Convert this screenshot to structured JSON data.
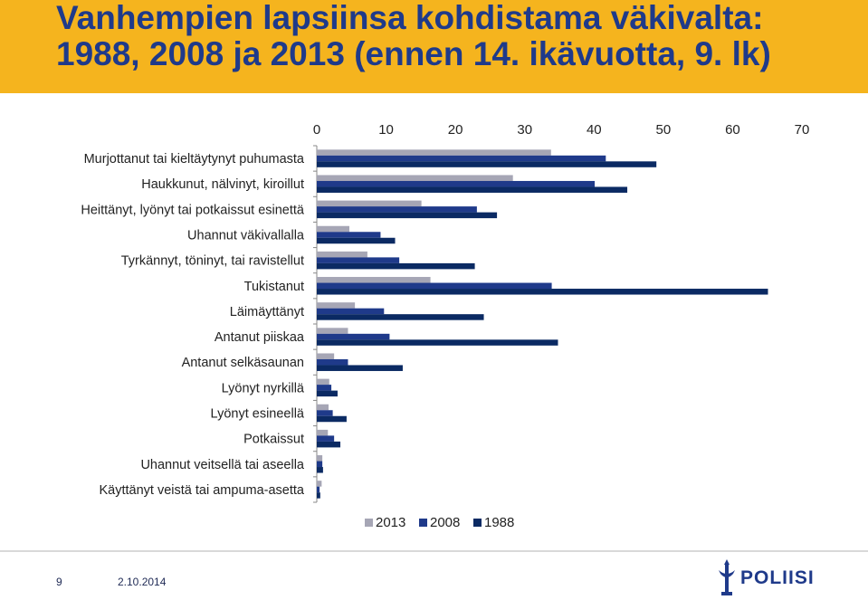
{
  "title": {
    "line1": "Vanhempien lapsiinsa kohdistama väkivalta:",
    "line2": "1988, 2008 ja 2013 (ennen 14. ikävuotta, 9. lk)"
  },
  "footer": {
    "page_number": "9",
    "date": "2.10.2014",
    "logo_text": "POLIISI"
  },
  "colors": {
    "title_band": "#f5b41e",
    "title_text": "#1f3a8a",
    "series_2013": "#a6a6b5",
    "series_2008": "#1f3a8a",
    "series_1988": "#0b2a63"
  },
  "chart_data": {
    "type": "bar",
    "orientation": "horizontal",
    "xlim": [
      0,
      70
    ],
    "xticks": [
      0,
      10,
      20,
      30,
      40,
      50,
      60,
      70
    ],
    "grid": false,
    "legend_position": "bottom",
    "categories": [
      "Murjottanut tai kieltäytynyt puhumasta",
      "Haukkunut, nälvinyt, kiroillut",
      "Heittänyt, lyönyt tai potkaissut esinettä",
      "Uhannut väkivallalla",
      "Tyrkännyt, töninyt, tai ravistellut",
      "Tukistanut",
      "Läimäyttänyt",
      "Antanut piiskaa",
      "Antanut selkäsaunan",
      "Lyönyt nyrkillä",
      "Lyönyt esineellä",
      "Potkaissut",
      "Uhannut veitsellä tai aseella",
      "Käyttänyt veistä tai ampuma-asetta"
    ],
    "series": [
      {
        "name": "2013",
        "color": "#a6a6b5",
        "values": [
          33.8,
          28.3,
          15.1,
          4.7,
          7.3,
          16.4,
          5.5,
          4.5,
          2.5,
          1.8,
          1.7,
          1.6,
          0.8,
          0.7
        ]
      },
      {
        "name": "2008",
        "color": "#1f3a8a",
        "values": [
          41.7,
          40.1,
          23.1,
          9.2,
          11.9,
          33.9,
          9.7,
          10.5,
          4.5,
          2.1,
          2.3,
          2.5,
          0.8,
          0.4
        ]
      },
      {
        "name": "1988",
        "color": "#0b2a63",
        "values": [
          49.0,
          44.8,
          26.0,
          11.3,
          22.8,
          65.1,
          24.1,
          34.8,
          12.4,
          3.0,
          4.3,
          3.4,
          0.9,
          0.5
        ]
      }
    ]
  }
}
